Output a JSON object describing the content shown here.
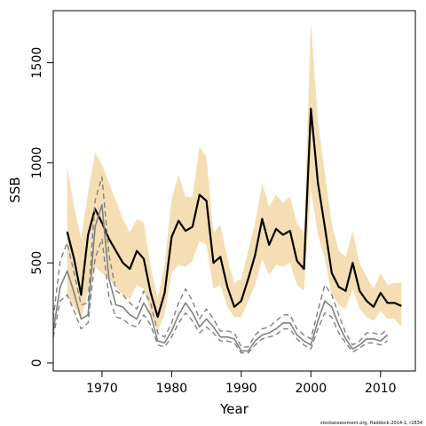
{
  "chart_data": {
    "type": "line",
    "xlabel": "Year",
    "ylabel": "SSB",
    "xlim": [
      1963,
      2015
    ],
    "ylim": [
      -40,
      1760
    ],
    "xticks": [
      1970,
      1980,
      1990,
      2000,
      2010
    ],
    "yticks": [
      0,
      500,
      1000,
      1500
    ],
    "grid": false,
    "legend": "none",
    "credit": "stockassessment.org, Haddock-2014-1, r2834",
    "colors": {
      "band": "#f5deb3",
      "main": "#000000",
      "dashed": "#808080"
    },
    "series": [
      {
        "role": "ssb",
        "style": "solid",
        "x": [
          1965,
          1966,
          1967,
          1968,
          1969,
          1970,
          1971,
          1972,
          1973,
          1974,
          1975,
          1976,
          1977,
          1978,
          1979,
          1980,
          1981,
          1982,
          1983,
          1984,
          1985,
          1986,
          1987,
          1988,
          1989,
          1990,
          1991,
          1992,
          1993,
          1994,
          1995,
          1996,
          1997,
          1998,
          1999,
          2000,
          2001,
          2002,
          2003,
          2004,
          2005,
          2006,
          2007,
          2008,
          2009,
          2010,
          2011,
          2012,
          2013
        ],
        "y": [
          655,
          520,
          340,
          640,
          770,
          700,
          620,
          560,
          500,
          470,
          560,
          520,
          350,
          230,
          350,
          630,
          710,
          660,
          680,
          840,
          810,
          500,
          530,
          380,
          280,
          310,
          420,
          540,
          720,
          590,
          670,
          640,
          660,
          510,
          470,
          1270,
          900,
          680,
          450,
          380,
          360,
          500,
          360,
          310,
          280,
          350,
          300,
          300,
          285
        ]
      },
      {
        "role": "ci-band",
        "style": "band",
        "x": [
          1965,
          1966,
          1967,
          1968,
          1969,
          1970,
          1971,
          1972,
          1973,
          1974,
          1975,
          1976,
          1977,
          1978,
          1979,
          1980,
          1981,
          1982,
          1983,
          1984,
          1985,
          1986,
          1987,
          1988,
          1989,
          1990,
          1991,
          1992,
          1993,
          1994,
          1995,
          1996,
          1997,
          1998,
          1999,
          2000,
          2001,
          2002,
          2003,
          2004,
          2005,
          2006,
          2007,
          2008,
          2009,
          2010,
          2011,
          2012,
          2013
        ],
        "upper": [
          980,
          780,
          620,
          850,
          1050,
          990,
          900,
          810,
          720,
          650,
          720,
          700,
          480,
          320,
          490,
          820,
          940,
          830,
          830,
          1080,
          1030,
          650,
          690,
          520,
          400,
          420,
          560,
          700,
          900,
          780,
          840,
          800,
          830,
          700,
          650,
          1700,
          1210,
          950,
          700,
          560,
          530,
          660,
          500,
          430,
          370,
          450,
          390,
          400,
          400
        ],
        "lower": [
          330,
          280,
          220,
          360,
          480,
          450,
          420,
          380,
          340,
          320,
          390,
          370,
          250,
          160,
          240,
          450,
          490,
          480,
          510,
          610,
          590,
          370,
          390,
          280,
          230,
          230,
          310,
          390,
          520,
          440,
          490,
          480,
          500,
          390,
          360,
          870,
          640,
          520,
          340,
          290,
          270,
          370,
          270,
          230,
          210,
          260,
          220,
          220,
          180
        ]
      },
      {
        "role": "recruit-estimate",
        "style": "solid-gray",
        "x": [
          1963,
          1964,
          1965,
          1966,
          1967,
          1968,
          1969,
          1970,
          1971,
          1972,
          1973,
          1974,
          1975,
          1976,
          1977,
          1978,
          1979,
          1980,
          1981,
          1982,
          1983,
          1984,
          1985,
          1986,
          1987,
          1988,
          1989,
          1990,
          1991,
          1992,
          1993,
          1994,
          1995,
          1996,
          1997,
          1998,
          1999,
          2000,
          2001,
          2002,
          2003,
          2004,
          2005,
          2006,
          2007,
          2008,
          2009,
          2010,
          2011
        ],
        "y": [
          160,
          380,
          460,
          350,
          220,
          240,
          680,
          790,
          420,
          290,
          280,
          240,
          220,
          300,
          240,
          110,
          100,
          160,
          240,
          300,
          250,
          180,
          220,
          180,
          130,
          130,
          120,
          60,
          60,
          110,
          140,
          150,
          170,
          200,
          200,
          140,
          110,
          90,
          210,
          310,
          280,
          190,
          120,
          70,
          90,
          120,
          120,
          110,
          140
        ]
      },
      {
        "role": "recruit-upper",
        "style": "dashed",
        "x": [
          1963,
          1964,
          1965,
          1966,
          1967,
          1968,
          1969,
          1970,
          1971,
          1972,
          1973,
          1974,
          1975,
          1976,
          1977,
          1978,
          1979,
          1980,
          1981,
          1982,
          1983,
          1984,
          1985,
          1986,
          1987,
          1988,
          1989,
          1990,
          1991,
          1992,
          1993,
          1994,
          1995,
          1996,
          1997,
          1998,
          1999,
          2000,
          2001,
          2002,
          2003,
          2004,
          2005,
          2006,
          2007,
          2008,
          2009,
          2010,
          2011
        ],
        "y": [
          220,
          510,
          600,
          450,
          290,
          300,
          810,
          930,
          540,
          360,
          340,
          300,
          270,
          360,
          300,
          150,
          130,
          200,
          300,
          370,
          310,
          220,
          270,
          220,
          160,
          160,
          150,
          80,
          80,
          140,
          170,
          180,
          210,
          240,
          240,
          170,
          140,
          120,
          260,
          390,
          340,
          240,
          150,
          90,
          110,
          150,
          150,
          140,
          170
        ]
      },
      {
        "role": "recruit-lower",
        "style": "dashed",
        "x": [
          1963,
          1964,
          1965,
          1966,
          1967,
          1968,
          1969,
          1970,
          1971,
          1972,
          1973,
          1974,
          1975,
          1976,
          1977,
          1978,
          1979,
          1980,
          1981,
          1982,
          1983,
          1984,
          1985,
          1986,
          1987,
          1988,
          1989,
          1990,
          1991,
          1992,
          1993,
          1994,
          1995,
          1996,
          1997,
          1998,
          1999,
          2000,
          2001,
          2002,
          2003,
          2004,
          2005,
          2006,
          2007,
          2008,
          2009,
          2010,
          2011
        ],
        "y": [
          130,
          310,
          340,
          260,
          170,
          200,
          520,
          620,
          330,
          230,
          220,
          190,
          180,
          240,
          190,
          90,
          80,
          130,
          200,
          250,
          210,
          150,
          180,
          150,
          110,
          110,
          100,
          50,
          50,
          90,
          120,
          130,
          140,
          170,
          170,
          120,
          90,
          70,
          170,
          250,
          230,
          150,
          100,
          55,
          75,
          100,
          100,
          90,
          110
        ]
      }
    ]
  }
}
